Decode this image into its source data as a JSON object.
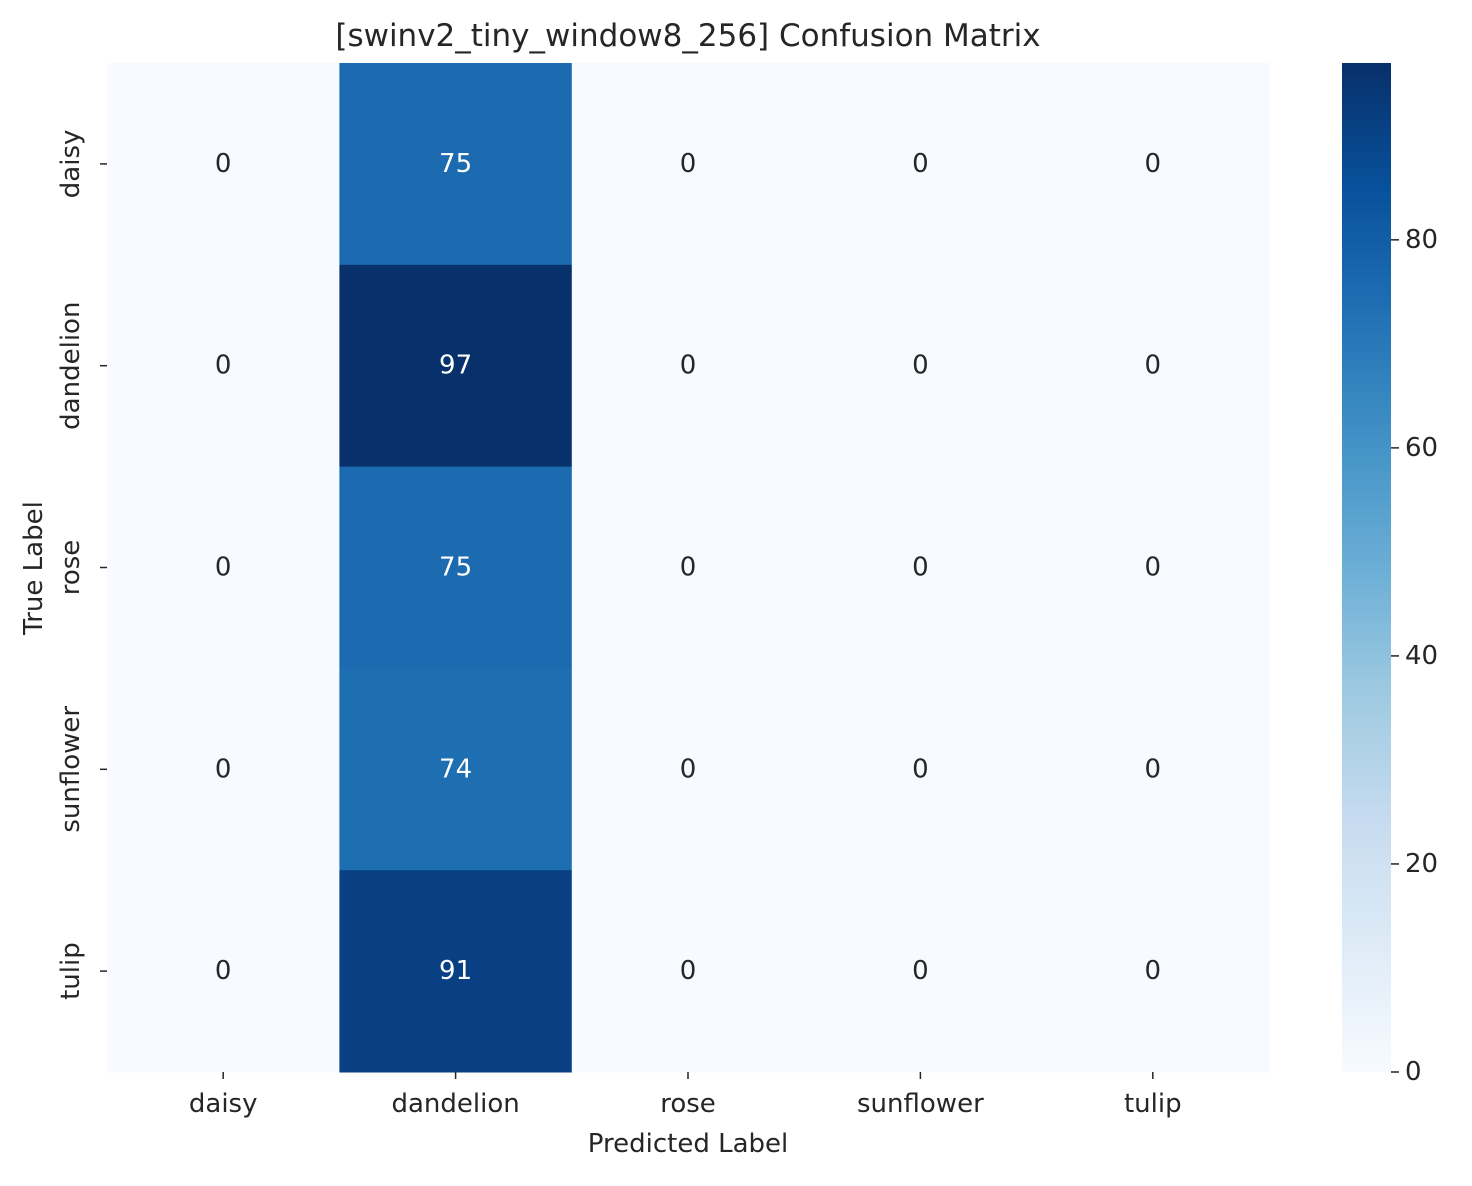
{
  "chart_data": {
    "type": "heatmap",
    "title": "[swinv2_tiny_window8_256] Confusion Matrix",
    "xlabel": "Predicted Label",
    "ylabel": "True Label",
    "x_categories": [
      "daisy",
      "dandelion",
      "rose",
      "sunflower",
      "tulip"
    ],
    "y_categories": [
      "daisy",
      "dandelion",
      "rose",
      "sunflower",
      "tulip"
    ],
    "values": [
      [
        0,
        75,
        0,
        0,
        0
      ],
      [
        0,
        97,
        0,
        0,
        0
      ],
      [
        0,
        75,
        0,
        0,
        0
      ],
      [
        0,
        74,
        0,
        0,
        0
      ],
      [
        0,
        91,
        0,
        0,
        0
      ]
    ],
    "colormap": "Blues",
    "colorbar": {
      "range": [
        0,
        97
      ],
      "ticks": [
        0,
        20,
        40,
        60,
        80
      ]
    },
    "annotations": true,
    "grid": false
  }
}
